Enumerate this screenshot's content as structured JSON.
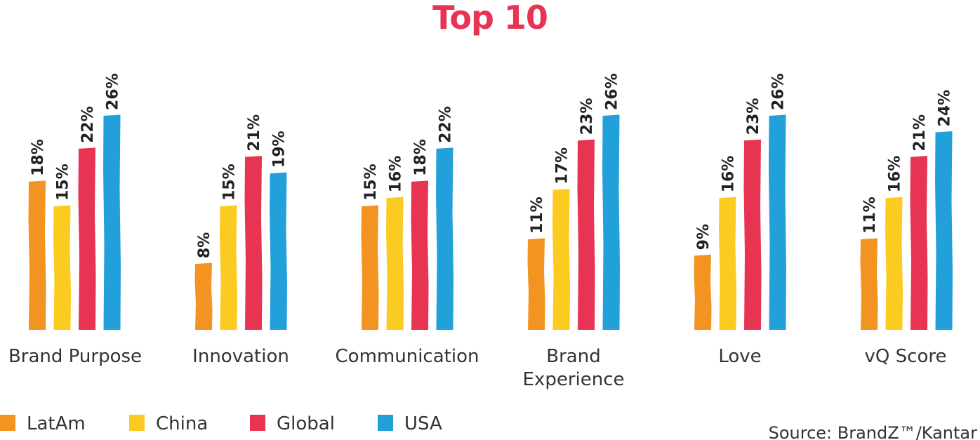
{
  "chart_data": {
    "type": "bar",
    "title": "Top 10",
    "categories": [
      "Brand Purpose",
      "Innovation",
      "Communication",
      "Brand Experience",
      "Love",
      "vQ Score"
    ],
    "category_lines": [
      [
        "Brand Purpose"
      ],
      [
        "Innovation"
      ],
      [
        "Communication"
      ],
      [
        "Brand",
        "Experience"
      ],
      [
        "Love"
      ],
      [
        "vQ Score"
      ]
    ],
    "series": [
      {
        "name": "LatAm",
        "color": "#F39322",
        "values": [
          18,
          8,
          15,
          11,
          9,
          11
        ]
      },
      {
        "name": "China",
        "color": "#FBCB22",
        "values": [
          15,
          15,
          16,
          17,
          16,
          16
        ]
      },
      {
        "name": "Global",
        "color": "#E73452",
        "values": [
          22,
          21,
          18,
          23,
          23,
          21
        ]
      },
      {
        "name": "USA",
        "color": "#22A0DA",
        "values": [
          26,
          19,
          22,
          26,
          26,
          24
        ]
      }
    ],
    "value_labels": [
      [
        "18%",
        "15%",
        "22%",
        "26%"
      ],
      [
        "8%",
        "15%",
        "21%",
        "19%"
      ],
      [
        "15%",
        "16%",
        "18%",
        "22%"
      ],
      [
        "11%",
        "17%",
        "23%",
        "26%"
      ],
      [
        "9%",
        "16%",
        "23%",
        "26%"
      ],
      [
        "11%",
        "16%",
        "21%",
        "24%"
      ]
    ],
    "xlabel": "",
    "ylabel": "",
    "ylim": [
      0,
      26
    ],
    "grid": false,
    "legend_position": "bottom-left",
    "title_color": "#E73452"
  },
  "source": "Source: BrandZ™/Kantar"
}
